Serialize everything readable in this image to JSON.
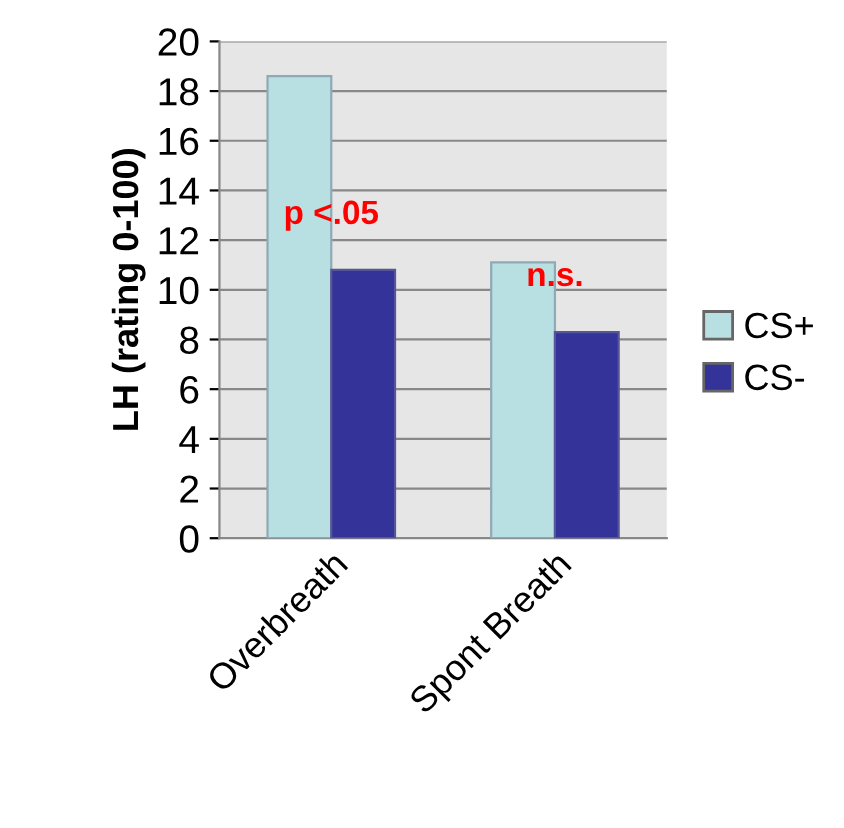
{
  "chart_data": {
    "type": "bar",
    "ylabel": "LH (rating 0-100)",
    "categories": [
      "Overbreath",
      "Spont Breath"
    ],
    "series": [
      {
        "name": "CS+",
        "color": "#b8e0e2",
        "values": [
          18.6,
          11.1
        ]
      },
      {
        "name": "CS-",
        "color": "#333399",
        "values": [
          10.8,
          8.3
        ]
      }
    ],
    "ylim": [
      0,
      20
    ],
    "yticks": [
      0,
      2,
      4,
      6,
      8,
      10,
      12,
      14,
      16,
      18,
      20
    ],
    "grid": "y",
    "legend": "right",
    "annotations": [
      "p <.05",
      "n.s."
    ]
  }
}
